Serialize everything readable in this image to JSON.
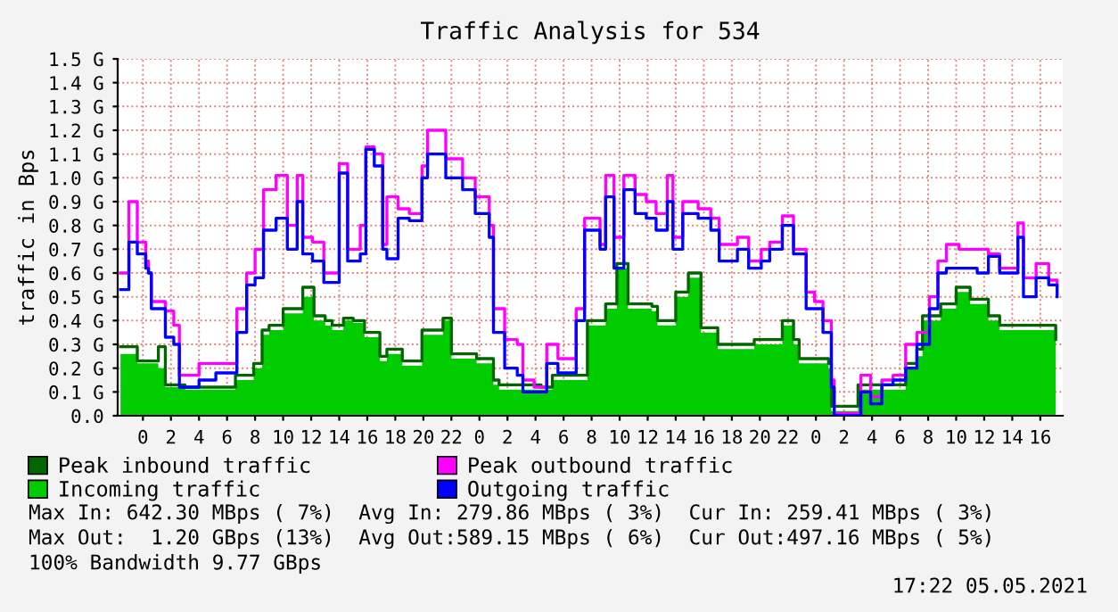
{
  "chart_data": {
    "type": "area",
    "title": "Traffic Analysis for 534",
    "ylabel": "traffic in Bps",
    "xlim": [
      "2021-05-02T22:12",
      "2021-05-05T17:36"
    ],
    "ylim": [
      0,
      1.5
    ],
    "xticks": [
      {
        "value": "2021-05-03T00:00",
        "label": "0"
      },
      {
        "value": "2021-05-03T02:00",
        "label": "2"
      },
      {
        "value": "2021-05-03T04:00",
        "label": "4"
      },
      {
        "value": "2021-05-03T06:00",
        "label": "6"
      },
      {
        "value": "2021-05-03T08:00",
        "label": "8"
      },
      {
        "value": "2021-05-03T10:00",
        "label": "10"
      },
      {
        "value": "2021-05-03T12:00",
        "label": "12"
      },
      {
        "value": "2021-05-03T14:00",
        "label": "14"
      },
      {
        "value": "2021-05-03T16:00",
        "label": "16"
      },
      {
        "value": "2021-05-03T18:00",
        "label": "18"
      },
      {
        "value": "2021-05-03T20:00",
        "label": "20"
      },
      {
        "value": "2021-05-03T22:00",
        "label": "22"
      },
      {
        "value": "2021-05-04T00:00",
        "label": "0"
      },
      {
        "value": "2021-05-04T02:00",
        "label": "2"
      },
      {
        "value": "2021-05-04T04:00",
        "label": "4"
      },
      {
        "value": "2021-05-04T06:00",
        "label": "6"
      },
      {
        "value": "2021-05-04T08:00",
        "label": "8"
      },
      {
        "value": "2021-05-04T10:00",
        "label": "10"
      },
      {
        "value": "2021-05-04T12:00",
        "label": "12"
      },
      {
        "value": "2021-05-04T14:00",
        "label": "14"
      },
      {
        "value": "2021-05-04T16:00",
        "label": "16"
      },
      {
        "value": "2021-05-04T18:00",
        "label": "18"
      },
      {
        "value": "2021-05-04T20:00",
        "label": "20"
      },
      {
        "value": "2021-05-04T22:00",
        "label": "22"
      },
      {
        "value": "2021-05-05T00:00",
        "label": "0"
      },
      {
        "value": "2021-05-05T02:00",
        "label": "2"
      },
      {
        "value": "2021-05-05T04:00",
        "label": "4"
      },
      {
        "value": "2021-05-05T06:00",
        "label": "6"
      },
      {
        "value": "2021-05-05T08:00",
        "label": "8"
      },
      {
        "value": "2021-05-05T10:00",
        "label": "10"
      },
      {
        "value": "2021-05-05T12:00",
        "label": "12"
      },
      {
        "value": "2021-05-05T14:00",
        "label": "14"
      },
      {
        "value": "2021-05-05T16:00",
        "label": "16"
      }
    ],
    "yticks": [
      {
        "value": 0,
        "label": "0.0"
      },
      {
        "value": 0.1,
        "label": "0.1 G"
      },
      {
        "value": 0.2,
        "label": "0.2 G"
      },
      {
        "value": 0.3,
        "label": "0.3 G"
      },
      {
        "value": 0.4,
        "label": "0.4 G"
      },
      {
        "value": 0.5,
        "label": "0.5 G"
      },
      {
        "value": 0.6,
        "label": "0.6 G"
      },
      {
        "value": 0.7,
        "label": "0.7 G"
      },
      {
        "value": 0.8,
        "label": "0.8 G"
      },
      {
        "value": 0.9,
        "label": "0.9 G"
      },
      {
        "value": 1.0,
        "label": "1.0 G"
      },
      {
        "value": 1.1,
        "label": "1.1 G"
      },
      {
        "value": 1.2,
        "label": "1.2 G"
      },
      {
        "value": 1.3,
        "label": "1.3 G"
      },
      {
        "value": 1.4,
        "label": "1.4 G"
      },
      {
        "value": 1.5,
        "label": "1.5 G"
      }
    ],
    "grid": true,
    "legend": "bottom",
    "x": [
      "2021-05-02T22:24",
      "2021-05-02T23:36",
      "2021-05-03T01:06",
      "2021-05-03T01:36",
      "2021-05-03T03:00",
      "2021-05-03T06:36",
      "2021-05-03T07:54",
      "2021-05-03T08:30",
      "2021-05-03T09:00",
      "2021-05-03T10:00",
      "2021-05-03T11:00",
      "2021-05-03T11:24",
      "2021-05-03T12:12",
      "2021-05-03T13:00",
      "2021-05-03T13:30",
      "2021-05-03T14:18",
      "2021-05-03T15:00",
      "2021-05-03T15:48",
      "2021-05-03T16:54",
      "2021-05-03T17:24",
      "2021-05-03T18:30",
      "2021-05-03T19:54",
      "2021-05-03T21:24",
      "2021-05-03T22:00",
      "2021-05-03T23:48",
      "2021-05-04T01:00",
      "2021-05-04T01:24",
      "2021-05-04T04:24",
      "2021-05-04T05:12",
      "2021-05-04T06:54",
      "2021-05-04T07:42",
      "2021-05-04T09:00",
      "2021-05-04T09:48",
      "2021-05-04T10:36",
      "2021-05-04T12:18",
      "2021-05-04T12:42",
      "2021-05-04T13:36",
      "2021-05-04T14:00",
      "2021-05-04T14:54",
      "2021-05-04T15:48",
      "2021-05-04T17:00",
      "2021-05-04T18:48",
      "2021-05-04T19:36",
      "2021-05-04T20:42",
      "2021-05-04T21:36",
      "2021-05-04T22:24",
      "2021-05-04T22:48",
      "2021-05-05T00:54",
      "2021-05-05T01:06",
      "2021-05-05T01:18",
      "2021-05-05T02:36",
      "2021-05-05T03:00",
      "2021-05-05T05:30",
      "2021-05-05T06:24",
      "2021-05-05T07:12",
      "2021-05-05T07:36",
      "2021-05-05T08:54",
      "2021-05-05T10:00",
      "2021-05-05T11:00",
      "2021-05-05T12:18",
      "2021-05-05T13:06",
      "2021-05-05T16:00",
      "2021-05-05T17:06"
    ],
    "series": [
      {
        "name": "Incoming traffic",
        "color": "#00cc00",
        "values": [
          0.26,
          0.22,
          0.2,
          0.12,
          0.11,
          0.15,
          0.2,
          0.34,
          0.36,
          0.43,
          0.43,
          0.5,
          0.4,
          0.38,
          0.36,
          0.4,
          0.39,
          0.33,
          0.23,
          0.26,
          0.21,
          0.34,
          0.4,
          0.24,
          0.22,
          0.13,
          0.11,
          0.11,
          0.15,
          0.15,
          0.38,
          0.45,
          0.62,
          0.45,
          0.44,
          0.38,
          0.38,
          0.5,
          0.58,
          0.35,
          0.28,
          0.28,
          0.3,
          0.3,
          0.38,
          0.3,
          0.22,
          0.2,
          0.02,
          0.02,
          0.02,
          0.11,
          0.11,
          0.2,
          0.25,
          0.4,
          0.45,
          0.52,
          0.47,
          0.4,
          0.36,
          0.36,
          0.3
        ]
      },
      {
        "name": "Peak inbound traffic",
        "type": "step",
        "color": "#006600",
        "values": [
          0.29,
          0.23,
          0.29,
          0.13,
          0.12,
          0.17,
          0.22,
          0.36,
          0.38,
          0.45,
          0.45,
          0.54,
          0.42,
          0.4,
          0.38,
          0.41,
          0.4,
          0.35,
          0.25,
          0.28,
          0.23,
          0.36,
          0.41,
          0.26,
          0.24,
          0.15,
          0.13,
          0.12,
          0.17,
          0.17,
          0.4,
          0.47,
          0.64,
          0.47,
          0.46,
          0.4,
          0.4,
          0.52,
          0.6,
          0.37,
          0.3,
          0.3,
          0.32,
          0.32,
          0.4,
          0.32,
          0.24,
          0.22,
          0.04,
          0.04,
          0.04,
          0.13,
          0.13,
          0.22,
          0.28,
          0.42,
          0.47,
          0.54,
          0.49,
          0.42,
          0.38,
          0.38,
          0.32
        ]
      },
      {
        "name": "Peak outbound traffic",
        "type": "step",
        "color": "#ff00ff",
        "x": [
          "2021-05-02T22:24",
          "2021-05-02T23:00",
          "2021-05-02T23:36",
          "2021-05-03T00:12",
          "2021-05-03T00:24",
          "2021-05-03T00:36",
          "2021-05-03T01:36",
          "2021-05-03T02:12",
          "2021-05-03T02:36",
          "2021-05-03T04:00",
          "2021-05-03T05:12",
          "2021-05-03T06:42",
          "2021-05-03T07:24",
          "2021-05-03T08:00",
          "2021-05-03T08:36",
          "2021-05-03T09:30",
          "2021-05-03T10:18",
          "2021-05-03T11:00",
          "2021-05-03T11:24",
          "2021-05-03T12:06",
          "2021-05-03T12:54",
          "2021-05-03T14:00",
          "2021-05-03T14:36",
          "2021-05-03T15:30",
          "2021-05-03T15:54",
          "2021-05-03T16:30",
          "2021-05-03T17:06",
          "2021-05-03T17:24",
          "2021-05-03T18:12",
          "2021-05-03T19:00",
          "2021-05-03T19:54",
          "2021-05-03T20:18",
          "2021-05-03T21:36",
          "2021-05-03T22:48",
          "2021-05-03T23:42",
          "2021-05-04T00:42",
          "2021-05-04T01:00",
          "2021-05-04T01:48",
          "2021-05-04T02:42",
          "2021-05-04T03:06",
          "2021-05-04T03:54",
          "2021-05-04T04:48",
          "2021-05-04T05:36",
          "2021-05-04T06:54",
          "2021-05-04T07:30",
          "2021-05-04T08:36",
          "2021-05-04T09:00",
          "2021-05-04T09:36",
          "2021-05-04T10:18",
          "2021-05-04T11:06",
          "2021-05-04T11:54",
          "2021-05-04T12:36",
          "2021-05-04T13:24",
          "2021-05-04T13:48",
          "2021-05-04T14:30",
          "2021-05-04T15:36",
          "2021-05-04T16:30",
          "2021-05-04T17:06",
          "2021-05-04T18:24",
          "2021-05-04T19:12",
          "2021-05-04T20:06",
          "2021-05-04T20:42",
          "2021-05-04T21:36",
          "2021-05-04T22:24",
          "2021-05-04T23:18",
          "2021-05-04T23:54",
          "2021-05-05T00:30",
          "2021-05-05T01:06",
          "2021-05-05T01:18",
          "2021-05-05T02:36",
          "2021-05-05T03:12",
          "2021-05-05T03:54",
          "2021-05-05T04:42",
          "2021-05-05T05:30",
          "2021-05-05T06:24",
          "2021-05-05T07:12",
          "2021-05-05T08:06",
          "2021-05-05T08:42",
          "2021-05-05T09:18",
          "2021-05-05T10:12",
          "2021-05-05T11:30",
          "2021-05-05T12:18",
          "2021-05-05T13:06",
          "2021-05-05T14:24",
          "2021-05-05T14:48",
          "2021-05-05T15:42",
          "2021-05-05T16:36",
          "2021-05-05T17:12"
        ],
        "values": [
          0.6,
          0.9,
          0.73,
          0.65,
          0.6,
          0.48,
          0.44,
          0.38,
          0.17,
          0.22,
          0.22,
          0.45,
          0.6,
          0.7,
          0.95,
          1.01,
          0.8,
          1.01,
          0.75,
          0.73,
          0.6,
          1.06,
          0.7,
          0.8,
          1.13,
          1.1,
          0.72,
          0.92,
          0.87,
          0.85,
          1.05,
          1.2,
          1.08,
          1.0,
          0.92,
          0.8,
          0.45,
          0.32,
          0.3,
          0.15,
          0.12,
          0.3,
          0.24,
          0.45,
          0.83,
          0.72,
          1.01,
          0.75,
          1.01,
          0.93,
          0.9,
          0.85,
          1.01,
          0.75,
          0.9,
          0.87,
          0.83,
          0.72,
          0.75,
          0.65,
          0.7,
          0.73,
          0.84,
          0.7,
          0.52,
          0.48,
          0.4,
          0.15,
          0.01,
          0.01,
          0.17,
          0.08,
          0.15,
          0.17,
          0.3,
          0.35,
          0.5,
          0.65,
          0.72,
          0.7,
          0.7,
          0.68,
          0.62,
          0.81,
          0.58,
          0.64,
          0.57,
          0.55
        ]
      },
      {
        "name": "Outgoing traffic",
        "type": "step",
        "color": "#0000ff",
        "x": [
          "2021-05-02T22:24",
          "2021-05-02T23:00",
          "2021-05-02T23:36",
          "2021-05-03T00:12",
          "2021-05-03T00:24",
          "2021-05-03T00:36",
          "2021-05-03T01:36",
          "2021-05-03T02:12",
          "2021-05-03T02:36",
          "2021-05-03T04:00",
          "2021-05-03T05:12",
          "2021-05-03T06:42",
          "2021-05-03T07:24",
          "2021-05-03T08:00",
          "2021-05-03T08:36",
          "2021-05-03T09:30",
          "2021-05-03T10:18",
          "2021-05-03T11:00",
          "2021-05-03T11:24",
          "2021-05-03T12:06",
          "2021-05-03T12:54",
          "2021-05-03T14:00",
          "2021-05-03T14:36",
          "2021-05-03T15:30",
          "2021-05-03T15:54",
          "2021-05-03T16:30",
          "2021-05-03T17:06",
          "2021-05-03T17:24",
          "2021-05-03T18:12",
          "2021-05-03T19:00",
          "2021-05-03T19:54",
          "2021-05-03T20:18",
          "2021-05-03T21:36",
          "2021-05-03T22:48",
          "2021-05-03T23:42",
          "2021-05-04T00:42",
          "2021-05-04T01:00",
          "2021-05-04T01:48",
          "2021-05-04T02:42",
          "2021-05-04T03:06",
          "2021-05-04T03:54",
          "2021-05-04T04:48",
          "2021-05-04T05:36",
          "2021-05-04T06:54",
          "2021-05-04T07:30",
          "2021-05-04T08:36",
          "2021-05-04T09:00",
          "2021-05-04T09:36",
          "2021-05-04T10:18",
          "2021-05-04T11:06",
          "2021-05-04T11:54",
          "2021-05-04T12:36",
          "2021-05-04T13:24",
          "2021-05-04T13:48",
          "2021-05-04T14:30",
          "2021-05-04T15:36",
          "2021-05-04T16:30",
          "2021-05-04T17:06",
          "2021-05-04T18:24",
          "2021-05-04T19:12",
          "2021-05-04T20:06",
          "2021-05-04T20:42",
          "2021-05-04T21:36",
          "2021-05-04T22:24",
          "2021-05-04T23:18",
          "2021-05-04T23:54",
          "2021-05-05T00:30",
          "2021-05-05T01:06",
          "2021-05-05T01:18",
          "2021-05-05T02:36",
          "2021-05-05T03:12",
          "2021-05-05T03:54",
          "2021-05-05T04:42",
          "2021-05-05T05:30",
          "2021-05-05T06:24",
          "2021-05-05T07:12",
          "2021-05-05T08:06",
          "2021-05-05T08:42",
          "2021-05-05T09:18",
          "2021-05-05T10:12",
          "2021-05-05T11:30",
          "2021-05-05T12:18",
          "2021-05-05T13:06",
          "2021-05-05T14:24",
          "2021-05-05T14:48",
          "2021-05-05T15:42",
          "2021-05-05T16:36",
          "2021-05-05T17:12"
        ],
        "values": [
          0.53,
          0.73,
          0.68,
          0.62,
          0.6,
          0.45,
          0.33,
          0.3,
          0.12,
          0.15,
          0.18,
          0.35,
          0.55,
          0.58,
          0.78,
          0.83,
          0.7,
          0.9,
          0.68,
          0.65,
          0.56,
          1.02,
          0.65,
          0.68,
          1.12,
          1.05,
          0.7,
          0.66,
          0.83,
          0.82,
          1.0,
          1.1,
          1.0,
          0.95,
          0.85,
          0.75,
          0.35,
          0.2,
          0.17,
          0.1,
          0.1,
          0.22,
          0.18,
          0.4,
          0.78,
          0.7,
          0.92,
          0.62,
          0.95,
          0.85,
          0.83,
          0.78,
          0.9,
          0.7,
          0.85,
          0.83,
          0.78,
          0.65,
          0.7,
          0.62,
          0.65,
          0.7,
          0.8,
          0.68,
          0.45,
          0.45,
          0.35,
          0.12,
          0.0,
          0.0,
          0.1,
          0.05,
          0.13,
          0.15,
          0.2,
          0.3,
          0.45,
          0.6,
          0.62,
          0.62,
          0.6,
          0.67,
          0.6,
          0.75,
          0.5,
          0.58,
          0.55,
          0.5
        ]
      }
    ],
    "annotations": [
      "Max In: 642.30 MBps ( 7%)  Avg In: 279.86 MBps ( 3%)  Cur In: 259.41 MBps ( 3%)",
      "Max Out:  1.20 GBps (13%)  Avg Out:589.15 MBps ( 6%)  Cur Out:497.16 MBps ( 5%)",
      "100% Bandwidth 9.77 GBps",
      "17:22 05.05.2021"
    ]
  }
}
